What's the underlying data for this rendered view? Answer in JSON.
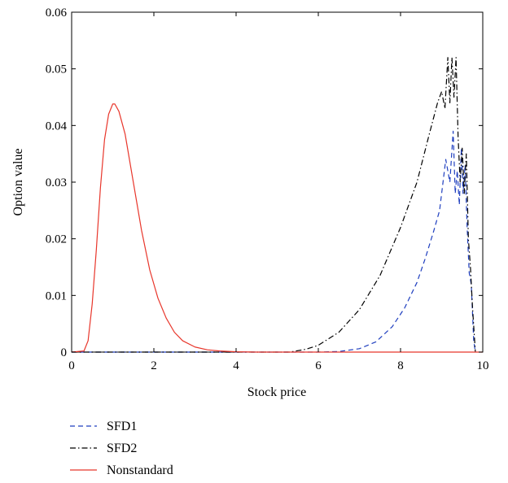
{
  "chart_data": {
    "type": "line",
    "title": "",
    "xlabel": "Stock price",
    "ylabel": "Option value",
    "xlim": [
      0,
      10
    ],
    "ylim": [
      0,
      0.06
    ],
    "xticks": [
      "0",
      "2",
      "4",
      "6",
      "8",
      "10"
    ],
    "yticks": [
      "0",
      "0.01",
      "0.02",
      "0.03",
      "0.04",
      "0.05",
      "0.06"
    ],
    "grid": false,
    "legend_position": "below",
    "series": [
      {
        "name": "SFD1",
        "color": "#1f3fbf",
        "style": "dashed",
        "x": [
          0,
          6,
          6.5,
          7,
          7.4,
          7.8,
          8.1,
          8.4,
          8.6,
          8.8,
          8.95,
          9.1,
          9.2,
          9.28,
          9.33,
          9.38,
          9.43,
          9.48,
          9.52,
          9.57,
          9.62,
          9.67,
          9.72,
          9.78,
          9.82
        ],
        "y": [
          0,
          0,
          0.0001,
          0.0006,
          0.0018,
          0.0045,
          0.0078,
          0.0123,
          0.0165,
          0.0212,
          0.025,
          0.034,
          0.03,
          0.039,
          0.028,
          0.032,
          0.026,
          0.036,
          0.028,
          0.033,
          0.022,
          0.014,
          0.012,
          0.002,
          0
        ]
      },
      {
        "name": "SFD2",
        "color": "#000000",
        "style": "dashdot",
        "x": [
          0,
          5.3,
          5.7,
          6,
          6.5,
          7,
          7.5,
          8,
          8.4,
          8.7,
          8.9,
          9,
          9.08,
          9.15,
          9.2,
          9.25,
          9.3,
          9.35,
          9.4,
          9.45,
          9.5,
          9.55,
          9.6,
          9.65,
          9.7,
          9.75,
          9.82
        ],
        "y": [
          0,
          0,
          0.0005,
          0.0012,
          0.0035,
          0.0075,
          0.0135,
          0.022,
          0.03,
          0.0385,
          0.044,
          0.046,
          0.043,
          0.052,
          0.044,
          0.052,
          0.045,
          0.052,
          0.038,
          0.03,
          0.036,
          0.028,
          0.035,
          0.02,
          0.015,
          0.008,
          0
        ]
      },
      {
        "name": "Nonstandard",
        "color": "#e8362b",
        "style": "solid",
        "x": [
          0,
          0.3,
          0.4,
          0.5,
          0.6,
          0.7,
          0.8,
          0.9,
          1.0,
          1.05,
          1.15,
          1.3,
          1.5,
          1.7,
          1.9,
          2.1,
          2.3,
          2.5,
          2.7,
          3.0,
          3.3,
          3.6,
          4.0,
          4.5,
          5.0,
          10
        ],
        "y": [
          0,
          0.0002,
          0.002,
          0.0085,
          0.018,
          0.029,
          0.0375,
          0.042,
          0.0438,
          0.0438,
          0.0425,
          0.0385,
          0.03,
          0.0215,
          0.0145,
          0.0095,
          0.006,
          0.0035,
          0.002,
          0.0009,
          0.0004,
          0.0002,
          5e-05,
          0,
          0,
          0
        ]
      }
    ]
  }
}
